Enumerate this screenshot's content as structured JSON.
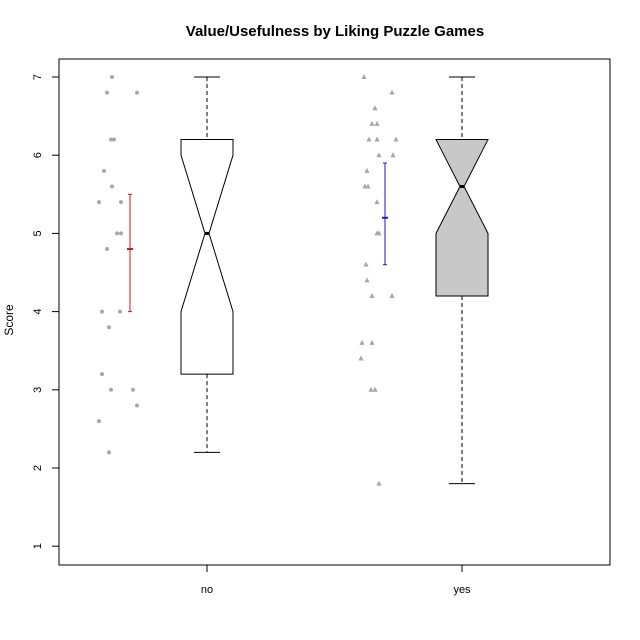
{
  "chart_data": {
    "type": "boxplot",
    "title": "Value/Usefulness by Liking Puzzle Games",
    "xlabel": "",
    "ylabel": "Score",
    "ylim": [
      0.75,
      7.0
    ],
    "yticks": [
      1,
      2,
      3,
      4,
      5,
      6,
      7
    ],
    "groups": [
      {
        "name": "no",
        "box_fill": "#ffffff",
        "notched": true,
        "whisker_low": 2.2,
        "q1": 3.2,
        "median": 5.0,
        "q3": 6.2,
        "whisker_high": 7.0,
        "notch_low": 4.0,
        "notch_high": 6.0,
        "mean": 4.8,
        "ci_low": 4.0,
        "ci_high": 5.5,
        "ci_color": "#d01515",
        "points": [
          7.0,
          6.8,
          6.8,
          6.2,
          6.2,
          5.8,
          5.6,
          5.4,
          5.4,
          5.0,
          5.0,
          4.8,
          4.0,
          4.0,
          3.8,
          3.2,
          3.0,
          3.0,
          2.8,
          2.6,
          2.2
        ],
        "point_offsets": [
          -0.15,
          -0.2,
          0.1,
          -0.16,
          -0.13,
          -0.23,
          -0.15,
          -0.28,
          -0.06,
          -0.1,
          -0.06,
          -0.2,
          -0.25,
          -0.07,
          -0.18,
          -0.25,
          -0.16,
          0.06,
          0.1,
          -0.28,
          -0.18
        ]
      },
      {
        "name": "yes",
        "box_fill": "#c8c8c8",
        "notched": true,
        "whisker_low": 1.8,
        "q1": 4.2,
        "median": 5.6,
        "q3": 6.2,
        "whisker_high": 7.0,
        "notch_low": 5.0,
        "notch_high": 6.2,
        "mean": 5.2,
        "ci_low": 4.6,
        "ci_high": 5.9,
        "ci_color": "#1a1acc",
        "points": [
          7.0,
          6.8,
          6.6,
          6.4,
          6.4,
          6.2,
          6.2,
          6.2,
          6.0,
          6.0,
          5.8,
          5.6,
          5.6,
          5.4,
          5.0,
          5.0,
          4.6,
          4.4,
          4.2,
          4.2,
          3.6,
          3.6,
          3.4,
          3.0,
          3.0,
          1.8
        ],
        "point_offsets": [
          -0.18,
          0.1,
          -0.07,
          -0.1,
          -0.05,
          -0.13,
          -0.05,
          0.14,
          -0.03,
          0.11,
          -0.15,
          -0.17,
          -0.14,
          -0.05,
          -0.05,
          -0.03,
          -0.16,
          -0.15,
          -0.1,
          0.1,
          -0.2,
          -0.1,
          -0.21,
          -0.11,
          -0.07,
          -0.03
        ]
      }
    ]
  }
}
